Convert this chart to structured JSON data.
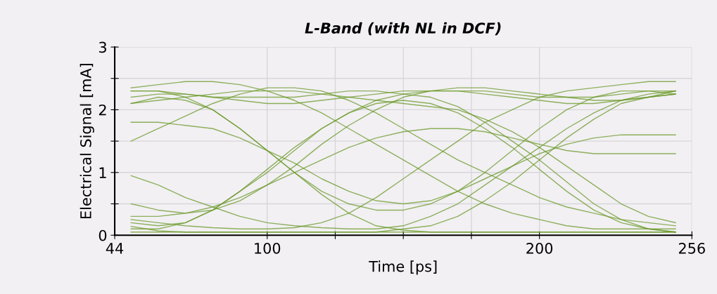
{
  "chart_data": {
    "type": "line",
    "title": "L-Band (with NL in DCF)",
    "xlabel": "Time [ps]",
    "ylabel": "Electrical Signal [mA]",
    "x": [
      50,
      60,
      70,
      80,
      90,
      100,
      110,
      120,
      130,
      140,
      150,
      160,
      170,
      180,
      190,
      200,
      210,
      220,
      230,
      240,
      250
    ],
    "xlim": [
      44,
      256
    ],
    "xticks": [
      44,
      100,
      {
        "value": 125,
        "label": null
      },
      {
        "value": 150,
        "label": null
      },
      {
        "value": 175,
        "label": null
      },
      200,
      256
    ],
    "ylim": [
      0,
      3
    ],
    "yticks": [
      0,
      {
        "value": 0.5,
        "label": null
      },
      1,
      {
        "value": 1.5,
        "label": null
      },
      2,
      {
        "value": 2.5,
        "label": null
      },
      3
    ],
    "grid": true,
    "line_style": "solid",
    "marker": "none",
    "series": [
      {
        "color": "#6b9a2a",
        "values": [
          2.3,
          2.3,
          2.25,
          2.2,
          2.15,
          2.1,
          2.1,
          2.15,
          2.2,
          2.25,
          2.3,
          2.3,
          2.3,
          2.25,
          2.2,
          2.15,
          2.1,
          2.1,
          2.15,
          2.2,
          2.25
        ]
      },
      {
        "color": "#6b9a2a",
        "values": [
          2.2,
          2.25,
          2.25,
          2.2,
          2.2,
          2.2,
          2.2,
          2.25,
          2.3,
          2.3,
          2.25,
          2.2,
          2.05,
          1.8,
          1.5,
          1.2,
          0.85,
          0.5,
          0.25,
          0.1,
          0.05
        ]
      },
      {
        "color": "#6b9a2a",
        "values": [
          2.1,
          2.2,
          2.15,
          2.0,
          1.7,
          1.35,
          1.0,
          0.7,
          0.5,
          0.4,
          0.4,
          0.5,
          0.7,
          1.0,
          1.35,
          1.7,
          2.0,
          2.2,
          2.3,
          2.3,
          2.25
        ]
      },
      {
        "color": "#6b9a2a",
        "values": [
          2.3,
          2.3,
          2.2,
          2.0,
          1.7,
          1.35,
          1.0,
          0.65,
          0.35,
          0.15,
          0.08,
          0.05,
          0.05,
          0.05,
          0.05,
          0.05,
          0.05,
          0.05,
          0.05,
          0.05,
          0.05
        ]
      },
      {
        "color": "#6b9a2a",
        "values": [
          0.2,
          0.15,
          0.2,
          0.4,
          0.7,
          1.0,
          1.35,
          1.7,
          1.95,
          2.15,
          2.25,
          2.3,
          2.3,
          2.3,
          2.25,
          2.2,
          2.2,
          2.2,
          2.25,
          2.3,
          2.3
        ]
      },
      {
        "color": "#6b9a2a",
        "values": [
          0.1,
          0.1,
          0.2,
          0.4,
          0.7,
          1.05,
          1.4,
          1.7,
          1.95,
          2.1,
          2.15,
          2.1,
          1.95,
          1.7,
          1.4,
          1.05,
          0.7,
          0.4,
          0.2,
          0.1,
          0.05
        ]
      },
      {
        "color": "#6b9a2a",
        "values": [
          0.05,
          0.05,
          0.05,
          0.05,
          0.05,
          0.05,
          0.05,
          0.05,
          0.05,
          0.05,
          0.1,
          0.15,
          0.3,
          0.55,
          0.85,
          1.2,
          1.55,
          1.85,
          2.1,
          2.2,
          2.3
        ]
      },
      {
        "color": "#6b9a2a",
        "values": [
          0.14,
          0.07,
          0.05,
          0.05,
          0.05,
          0.05,
          0.05,
          0.05,
          0.05,
          0.05,
          0.05,
          0.05,
          0.05,
          0.05,
          0.05,
          0.05,
          0.05,
          0.05,
          0.05,
          0.05,
          0.05
        ]
      },
      {
        "color": "#6b9a2a",
        "values": [
          2.35,
          2.4,
          2.45,
          2.45,
          2.4,
          2.3,
          2.15,
          1.95,
          1.7,
          1.45,
          1.2,
          0.95,
          0.7,
          0.5,
          0.35,
          0.25,
          0.15,
          0.1,
          0.1,
          0.1,
          0.1
        ]
      },
      {
        "color": "#6b9a2a",
        "values": [
          1.5,
          1.7,
          1.9,
          2.1,
          2.25,
          2.35,
          2.35,
          2.3,
          2.15,
          1.95,
          1.7,
          1.45,
          1.2,
          1.0,
          0.8,
          0.6,
          0.45,
          0.35,
          0.25,
          0.2,
          0.15
        ]
      },
      {
        "color": "#6b9a2a",
        "values": [
          0.95,
          0.8,
          0.6,
          0.45,
          0.3,
          0.2,
          0.15,
          0.12,
          0.1,
          0.1,
          0.15,
          0.3,
          0.5,
          0.8,
          1.1,
          1.4,
          1.7,
          1.95,
          2.15,
          2.25,
          2.3
        ]
      },
      {
        "color": "#6b9a2a",
        "values": [
          0.3,
          0.3,
          0.35,
          0.45,
          0.6,
          0.8,
          1.0,
          1.2,
          1.4,
          1.55,
          1.65,
          1.7,
          1.7,
          1.65,
          1.55,
          1.45,
          1.35,
          1.3,
          1.3,
          1.3,
          1.3
        ]
      },
      {
        "color": "#6b9a2a",
        "values": [
          1.8,
          1.8,
          1.75,
          1.7,
          1.55,
          1.35,
          1.15,
          0.9,
          0.7,
          0.55,
          0.5,
          0.55,
          0.7,
          0.9,
          1.1,
          1.3,
          1.45,
          1.55,
          1.6,
          1.6,
          1.6
        ]
      },
      {
        "color": "#6b9a2a",
        "values": [
          2.1,
          2.15,
          2.2,
          2.25,
          2.3,
          2.3,
          2.3,
          2.25,
          2.2,
          2.15,
          2.1,
          2.05,
          2.0,
          1.85,
          1.65,
          1.4,
          1.1,
          0.8,
          0.5,
          0.3,
          0.2
        ]
      },
      {
        "color": "#6b9a2a",
        "values": [
          0.5,
          0.4,
          0.35,
          0.4,
          0.55,
          0.8,
          1.1,
          1.45,
          1.75,
          2.0,
          2.2,
          2.3,
          2.35,
          2.35,
          2.3,
          2.25,
          2.2,
          2.15,
          2.15,
          2.2,
          2.25
        ]
      },
      {
        "color": "#6b9a2a",
        "values": [
          0.25,
          0.2,
          0.15,
          0.12,
          0.1,
          0.1,
          0.12,
          0.2,
          0.35,
          0.6,
          0.9,
          1.2,
          1.5,
          1.8,
          2.0,
          2.2,
          2.3,
          2.35,
          2.4,
          2.45,
          2.45
        ]
      }
    ]
  }
}
